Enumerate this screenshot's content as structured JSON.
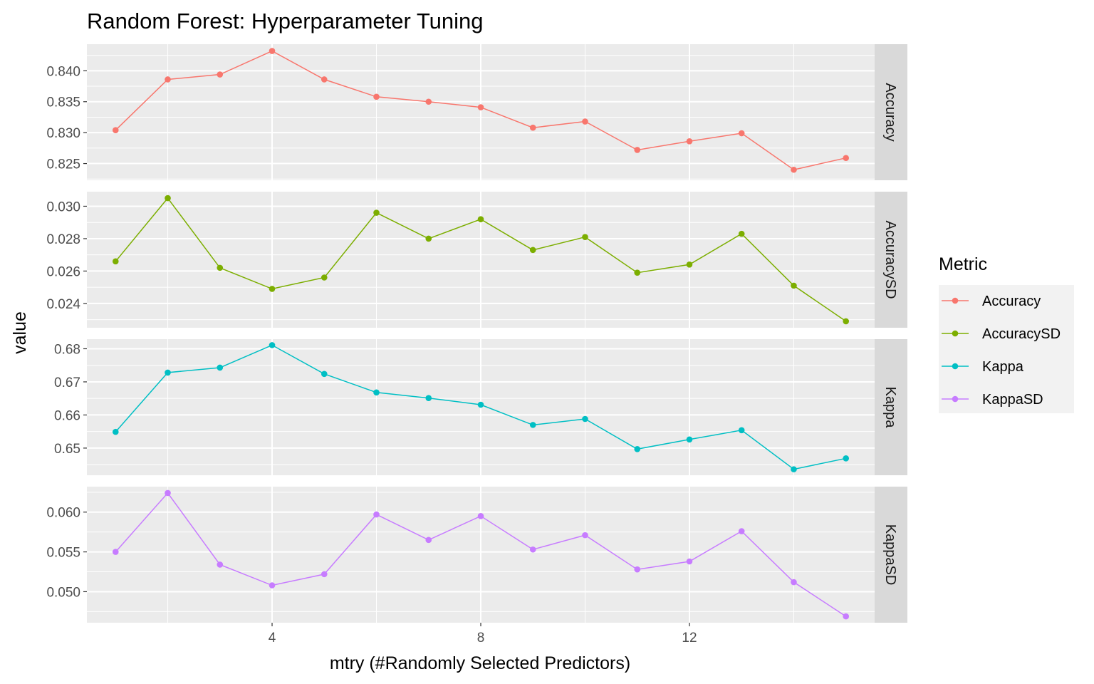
{
  "chart_data": {
    "type": "line",
    "title": "Random Forest: Hyperparameter Tuning",
    "xlabel": "mtry (#Randomly Selected Predictors)",
    "ylabel": "value",
    "x": [
      1,
      2,
      3,
      4,
      5,
      6,
      7,
      8,
      9,
      10,
      11,
      12,
      13,
      14,
      15
    ],
    "xlim": [
      0.45,
      15.55
    ],
    "x_ticks": [
      4,
      8,
      12
    ],
    "x_tick_labels": [
      "4",
      "8",
      "12"
    ],
    "grid": true,
    "legend": {
      "title": "Metric",
      "position": "right"
    },
    "series": [
      {
        "name": "Accuracy",
        "color": "#F8766D",
        "values": [
          0.8304,
          0.8386,
          0.8394,
          0.8432,
          0.8386,
          0.8358,
          0.835,
          0.8341,
          0.8308,
          0.8318,
          0.8272,
          0.8286,
          0.8299,
          0.824,
          0.8259
        ],
        "ylim": [
          0.8223,
          0.8443
        ],
        "y_ticks": [
          0.825,
          0.83,
          0.835,
          0.84
        ],
        "y_tick_labels": [
          "0.825",
          "0.830",
          "0.835",
          "0.840"
        ]
      },
      {
        "name": "AccuracySD",
        "color": "#7CAE00",
        "values": [
          0.0266,
          0.0305,
          0.0262,
          0.0249,
          0.0256,
          0.0296,
          0.028,
          0.0292,
          0.0273,
          0.0281,
          0.0259,
          0.0264,
          0.0283,
          0.0251,
          0.0229
        ],
        "ylim": [
          0.0225,
          0.0309
        ],
        "y_ticks": [
          0.024,
          0.026,
          0.028,
          0.03
        ],
        "y_tick_labels": [
          "0.024",
          "0.026",
          "0.028",
          "0.030"
        ]
      },
      {
        "name": "Kappa",
        "color": "#00BFC4",
        "values": [
          0.6549,
          0.6728,
          0.6743,
          0.6811,
          0.6724,
          0.6668,
          0.6651,
          0.6631,
          0.657,
          0.6588,
          0.6497,
          0.6526,
          0.6554,
          0.6436,
          0.6469
        ],
        "ylim": [
          0.6418,
          0.6829
        ],
        "y_ticks": [
          0.65,
          0.66,
          0.67,
          0.68
        ],
        "y_tick_labels": [
          "0.65",
          "0.66",
          "0.67",
          "0.68"
        ]
      },
      {
        "name": "KappaSD",
        "color": "#C77CFF",
        "values": [
          0.055,
          0.0624,
          0.0534,
          0.0508,
          0.0522,
          0.0597,
          0.0565,
          0.0595,
          0.0553,
          0.0571,
          0.0528,
          0.0538,
          0.0576,
          0.0512,
          0.0469
        ],
        "ylim": [
          0.0461,
          0.0632
        ],
        "y_ticks": [
          0.05,
          0.055,
          0.06
        ],
        "y_tick_labels": [
          "0.050",
          "0.055",
          "0.060"
        ]
      }
    ]
  }
}
